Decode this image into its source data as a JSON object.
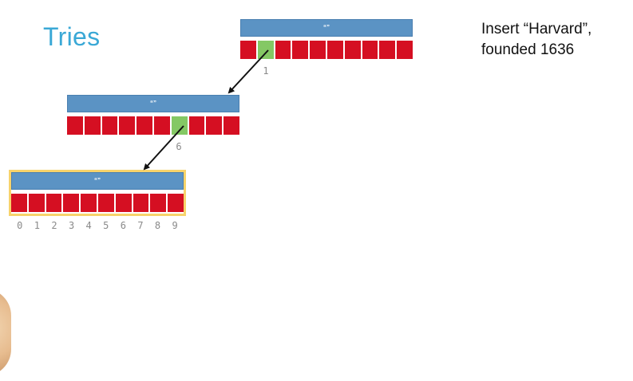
{
  "slide": {
    "title": "Tries",
    "caption_line1": "Insert “Harvard”,",
    "caption_line2": "founded 1636"
  },
  "nodes": [
    {
      "header": "“”",
      "cell_count": 10,
      "active_index": 1,
      "index_label": "1"
    },
    {
      "header": "“”",
      "cell_count": 10,
      "active_index": 6,
      "index_label": "6"
    },
    {
      "header": "“”",
      "cell_count": 10,
      "active_index": null,
      "highlighted": true,
      "index_labels": [
        "0",
        "1",
        "2",
        "3",
        "4",
        "5",
        "6",
        "7",
        "8",
        "9"
      ]
    }
  ],
  "colors": {
    "title": "#3aa8d6",
    "header": "#5b93c4",
    "cell": "#d50f22",
    "active_cell": "#84c864",
    "highlight_border": "#f7d36b",
    "index_text": "#8a8a8a"
  }
}
